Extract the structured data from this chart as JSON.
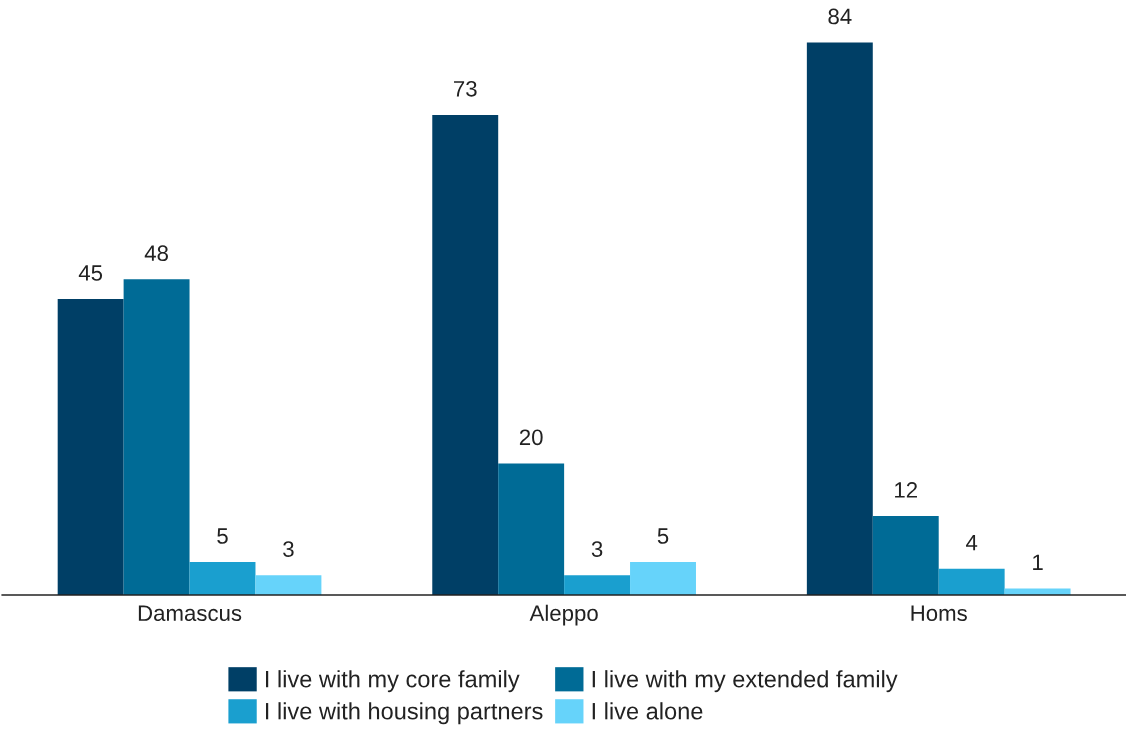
{
  "chart_data": {
    "type": "bar",
    "categories": [
      "Damascus",
      "Aleppo",
      "Homs"
    ],
    "series": [
      {
        "name": "I live with my core family",
        "color": "#003f66",
        "values": [
          45,
          73,
          84
        ]
      },
      {
        "name": "I live with my extended family",
        "color": "#006b96",
        "values": [
          48,
          20,
          12
        ]
      },
      {
        "name": "I live with housing partners",
        "color": "#1a9fcf",
        "values": [
          5,
          3,
          4
        ]
      },
      {
        "name": "I live alone",
        "color": "#66d3fa",
        "values": [
          3,
          5,
          1
        ]
      }
    ],
    "data_labels": true,
    "legend": "bottom",
    "grid": false,
    "tick_labels": "x"
  }
}
